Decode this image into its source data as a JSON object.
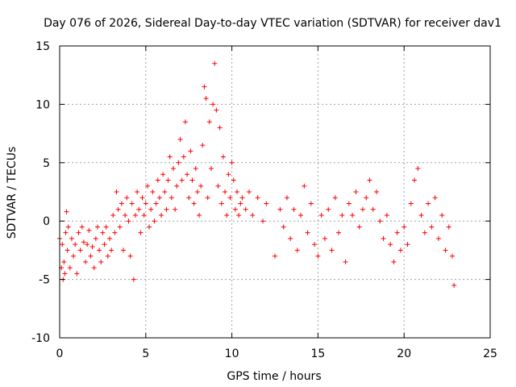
{
  "chart_data": {
    "type": "scatter",
    "title": "Day 076 of 2026, Sidereal Day-to-day VTEC variation (SDTVAR) for receiver dav1",
    "xlabel": "GPS time / hours",
    "ylabel": "SDTVAR / TECUs",
    "xlim": [
      0,
      25
    ],
    "ylim": [
      -10,
      15
    ],
    "xticks": [
      0,
      5,
      10,
      15,
      20,
      25
    ],
    "yticks": [
      -10,
      -5,
      0,
      5,
      10,
      15
    ],
    "xtick_labels": [
      "0",
      "5",
      "10",
      "15",
      "20",
      "25"
    ],
    "ytick_labels": [
      "-10",
      "-5",
      "0",
      "5",
      "10",
      "15"
    ],
    "grid": true,
    "marker": "+",
    "color": "#ff0000",
    "series": [
      {
        "name": "dav1",
        "points": [
          [
            0.0,
            -1.5
          ],
          [
            0.1,
            -4.0
          ],
          [
            0.15,
            -2.0
          ],
          [
            0.2,
            -5.0
          ],
          [
            0.25,
            -3.5
          ],
          [
            0.3,
            -4.5
          ],
          [
            0.35,
            -1.0
          ],
          [
            0.4,
            0.8
          ],
          [
            0.45,
            -2.5
          ],
          [
            0.5,
            -0.5
          ],
          [
            0.6,
            -4.0
          ],
          [
            0.7,
            -1.5
          ],
          [
            0.8,
            -3.0
          ],
          [
            0.9,
            -2.0
          ],
          [
            1.0,
            -4.5
          ],
          [
            1.1,
            -1.0
          ],
          [
            1.2,
            -2.5
          ],
          [
            1.3,
            -0.5
          ],
          [
            1.4,
            -1.8
          ],
          [
            1.5,
            -3.5
          ],
          [
            1.6,
            -2.0
          ],
          [
            1.7,
            -0.8
          ],
          [
            1.8,
            -3.0
          ],
          [
            1.9,
            -2.2
          ],
          [
            2.0,
            -4.0
          ],
          [
            2.1,
            -1.5
          ],
          [
            2.2,
            -0.5
          ],
          [
            2.3,
            -2.5
          ],
          [
            2.4,
            -3.5
          ],
          [
            2.5,
            -1.0
          ],
          [
            2.6,
            -2.0
          ],
          [
            2.7,
            -0.5
          ],
          [
            2.8,
            -3.0
          ],
          [
            2.9,
            -1.5
          ],
          [
            3.0,
            -2.5
          ],
          [
            3.1,
            0.5
          ],
          [
            3.2,
            -1.0
          ],
          [
            3.3,
            2.5
          ],
          [
            3.4,
            1.0
          ],
          [
            3.5,
            -0.5
          ],
          [
            3.6,
            1.5
          ],
          [
            3.7,
            -2.5
          ],
          [
            3.8,
            0.5
          ],
          [
            3.9,
            2.0
          ],
          [
            4.0,
            0.0
          ],
          [
            4.1,
            -3.0
          ],
          [
            4.2,
            1.5
          ],
          [
            4.3,
            -5.0
          ],
          [
            4.4,
            0.5
          ],
          [
            4.5,
            2.5
          ],
          [
            4.6,
            1.0
          ],
          [
            4.7,
            -1.0
          ],
          [
            4.8,
            2.0
          ],
          [
            4.9,
            0.5
          ],
          [
            5.0,
            1.5
          ],
          [
            5.1,
            3.0
          ],
          [
            5.2,
            -0.5
          ],
          [
            5.3,
            1.0
          ],
          [
            5.4,
            2.5
          ],
          [
            5.5,
            0.0
          ],
          [
            5.6,
            1.5
          ],
          [
            5.7,
            3.5
          ],
          [
            5.8,
            2.0
          ],
          [
            5.9,
            0.5
          ],
          [
            6.0,
            4.0
          ],
          [
            6.1,
            2.5
          ],
          [
            6.2,
            1.0
          ],
          [
            6.3,
            3.5
          ],
          [
            6.4,
            5.5
          ],
          [
            6.5,
            2.0
          ],
          [
            6.6,
            4.5
          ],
          [
            6.7,
            1.0
          ],
          [
            6.8,
            3.0
          ],
          [
            6.9,
            5.0
          ],
          [
            7.0,
            7.0
          ],
          [
            7.1,
            3.5
          ],
          [
            7.2,
            5.5
          ],
          [
            7.3,
            8.5
          ],
          [
            7.4,
            4.0
          ],
          [
            7.5,
            2.0
          ],
          [
            7.6,
            6.0
          ],
          [
            7.7,
            3.5
          ],
          [
            7.8,
            1.5
          ],
          [
            7.9,
            4.5
          ],
          [
            8.0,
            2.5
          ],
          [
            8.1,
            0.5
          ],
          [
            8.2,
            3.0
          ],
          [
            8.3,
            6.5
          ],
          [
            8.4,
            11.5
          ],
          [
            8.5,
            10.5
          ],
          [
            8.6,
            2.0
          ],
          [
            8.7,
            8.5
          ],
          [
            8.8,
            4.5
          ],
          [
            8.9,
            10.0
          ],
          [
            9.0,
            13.5
          ],
          [
            9.1,
            9.5
          ],
          [
            9.2,
            3.0
          ],
          [
            9.3,
            8.0
          ],
          [
            9.4,
            1.5
          ],
          [
            9.5,
            5.5
          ],
          [
            9.6,
            2.5
          ],
          [
            9.7,
            0.5
          ],
          [
            9.8,
            4.0
          ],
          [
            9.9,
            2.0
          ],
          [
            10.0,
            5.0
          ],
          [
            10.1,
            3.5
          ],
          [
            10.2,
            1.0
          ],
          [
            10.3,
            2.5
          ],
          [
            10.4,
            0.5
          ],
          [
            10.5,
            1.5
          ],
          [
            10.6,
            2.0
          ],
          [
            10.8,
            1.0
          ],
          [
            11.0,
            2.5
          ],
          [
            11.2,
            0.5
          ],
          [
            11.5,
            2.0
          ],
          [
            11.8,
            0.0
          ],
          [
            12.0,
            1.5
          ],
          [
            12.5,
            -3.0
          ],
          [
            12.8,
            1.0
          ],
          [
            13.0,
            -0.5
          ],
          [
            13.2,
            2.0
          ],
          [
            13.4,
            -1.5
          ],
          [
            13.6,
            1.0
          ],
          [
            13.8,
            -2.5
          ],
          [
            14.0,
            0.5
          ],
          [
            14.2,
            3.0
          ],
          [
            14.4,
            -1.0
          ],
          [
            14.6,
            1.5
          ],
          [
            14.8,
            -2.0
          ],
          [
            15.0,
            -3.0
          ],
          [
            15.2,
            0.5
          ],
          [
            15.4,
            -1.5
          ],
          [
            15.6,
            1.0
          ],
          [
            15.8,
            -2.5
          ],
          [
            16.0,
            2.0
          ],
          [
            16.2,
            -1.0
          ],
          [
            16.4,
            0.5
          ],
          [
            16.6,
            -3.5
          ],
          [
            16.8,
            1.5
          ],
          [
            17.0,
            0.5
          ],
          [
            17.2,
            2.5
          ],
          [
            17.4,
            -0.5
          ],
          [
            17.6,
            1.0
          ],
          [
            17.8,
            2.0
          ],
          [
            18.0,
            3.5
          ],
          [
            18.2,
            1.0
          ],
          [
            18.4,
            2.5
          ],
          [
            18.6,
            0.0
          ],
          [
            18.8,
            -1.5
          ],
          [
            19.0,
            0.5
          ],
          [
            19.2,
            -2.0
          ],
          [
            19.4,
            -3.5
          ],
          [
            19.6,
            -1.0
          ],
          [
            19.8,
            -2.5
          ],
          [
            20.0,
            -0.5
          ],
          [
            20.2,
            -2.0
          ],
          [
            20.4,
            1.5
          ],
          [
            20.6,
            3.5
          ],
          [
            20.8,
            4.5
          ],
          [
            21.0,
            0.5
          ],
          [
            21.2,
            -1.0
          ],
          [
            21.4,
            1.5
          ],
          [
            21.6,
            -0.5
          ],
          [
            21.8,
            2.0
          ],
          [
            22.0,
            -1.5
          ],
          [
            22.2,
            0.5
          ],
          [
            22.4,
            -2.5
          ],
          [
            22.6,
            -0.5
          ],
          [
            22.8,
            -3.0
          ],
          [
            22.9,
            -5.5
          ]
        ]
      }
    ]
  }
}
